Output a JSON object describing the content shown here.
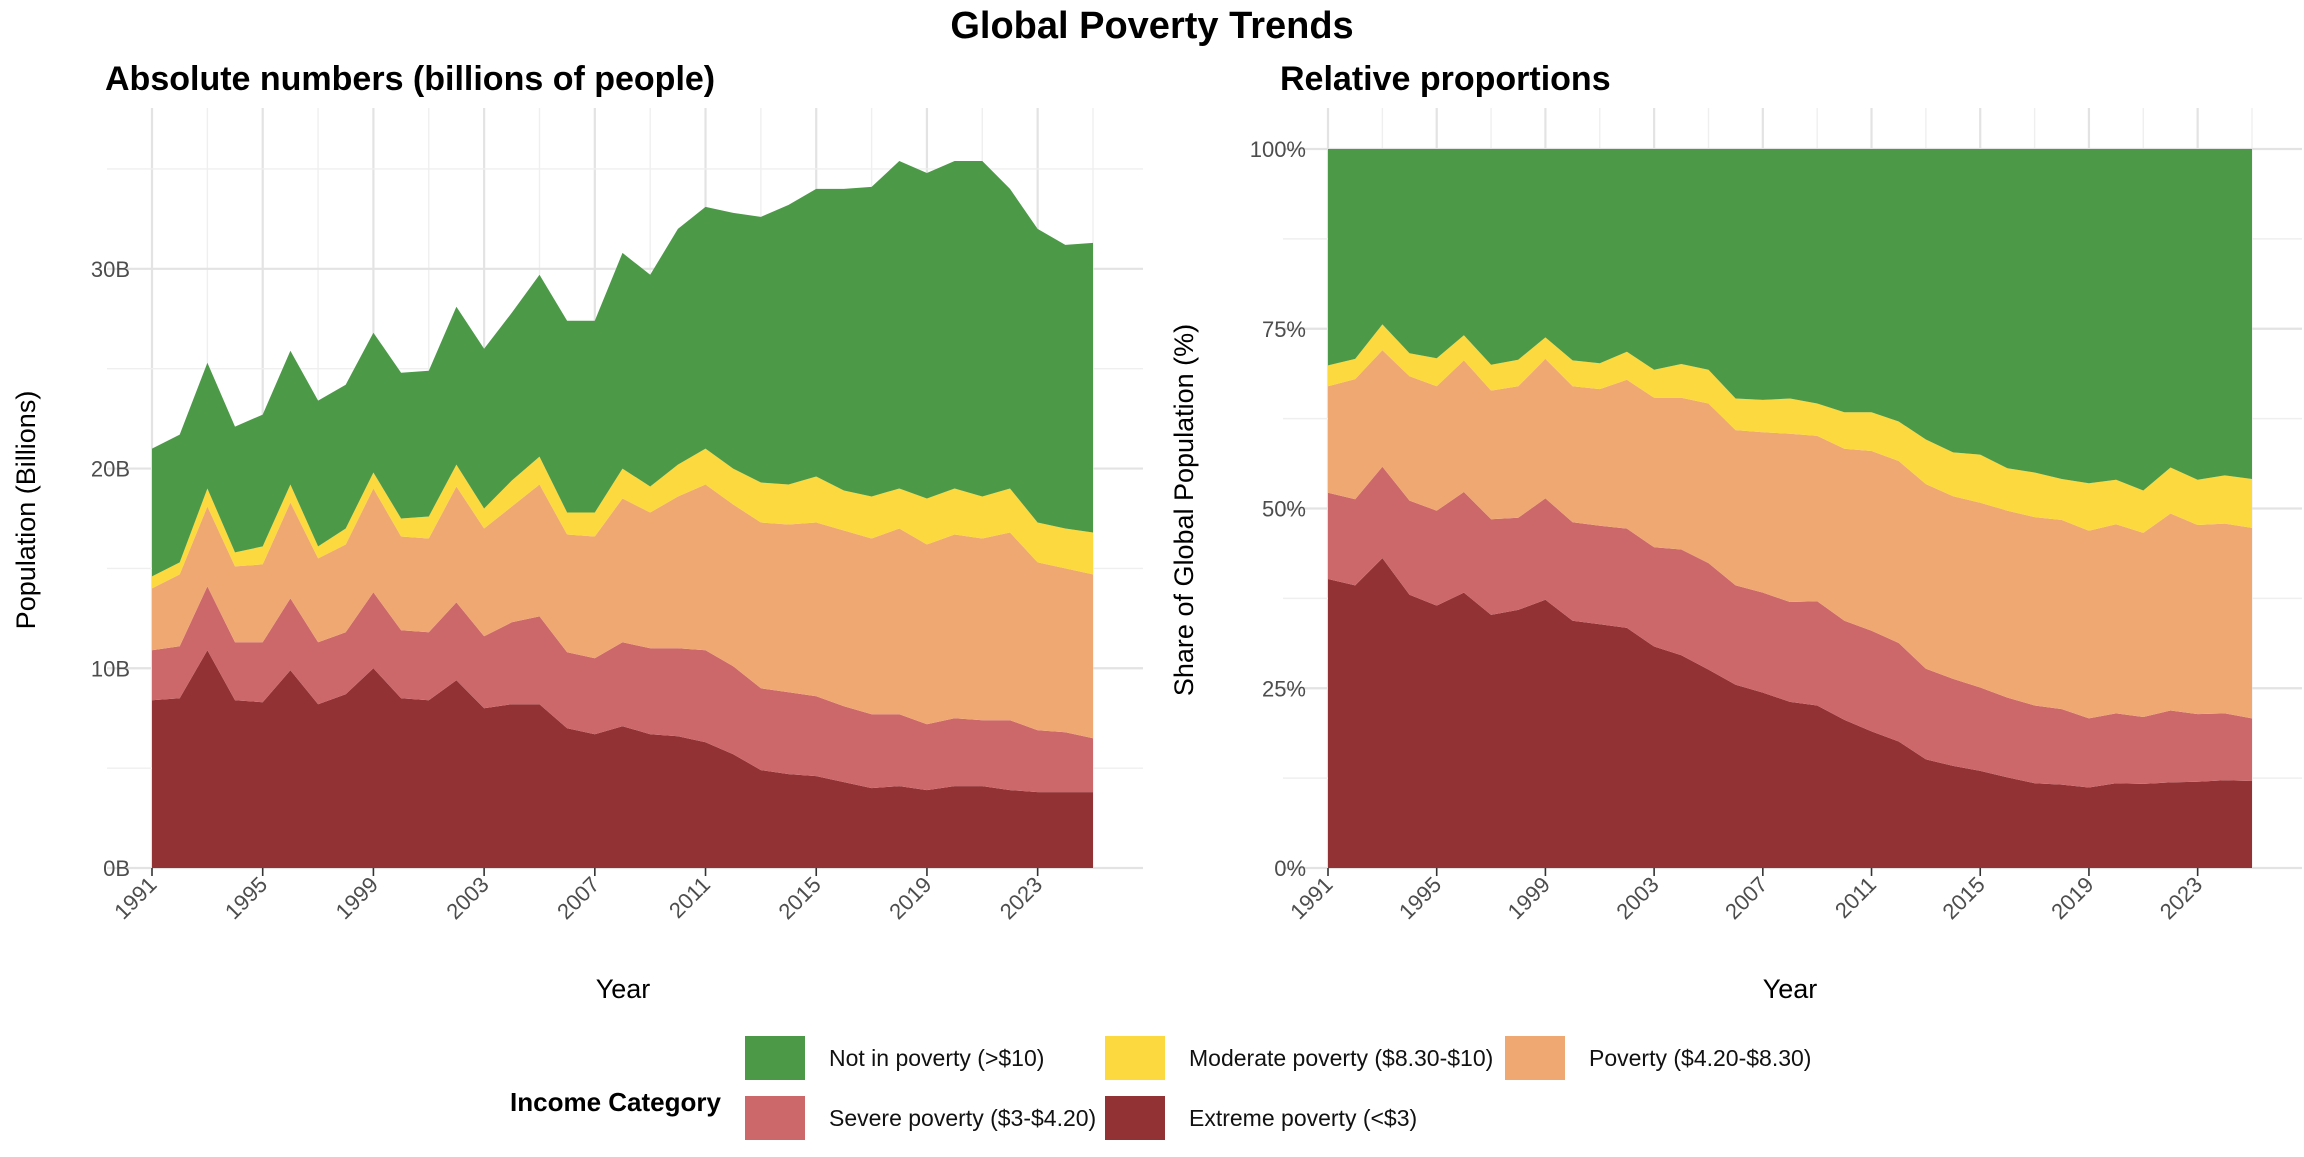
{
  "title": "Global Poverty Trends",
  "colors": {
    "not_in_poverty": "#4C9A48",
    "moderate": "#FCD93F",
    "poverty": "#F0A873",
    "severe": "#CD686A",
    "extreme": "#933234"
  },
  "legend": {
    "title": "Income Category",
    "items": [
      {
        "key": "not_in_poverty",
        "label": "Not in poverty (>$10)"
      },
      {
        "key": "moderate",
        "label": "Moderate poverty ($8.30-$10)"
      },
      {
        "key": "poverty",
        "label": "Poverty ($4.20-$8.30)"
      },
      {
        "key": "severe",
        "label": "Severe poverty ($3-$4.20)"
      },
      {
        "key": "extreme",
        "label": "Extreme poverty (<$3)"
      }
    ]
  },
  "chart_data": [
    {
      "type": "area",
      "title": "Absolute numbers (billions of people)",
      "xlabel": "Year",
      "ylabel": "Population (Billions)",
      "x": [
        1991,
        1992,
        1993,
        1994,
        1995,
        1996,
        1997,
        1998,
        1999,
        2000,
        2001,
        2002,
        2003,
        2004,
        2005,
        2006,
        2007,
        2008,
        2009,
        2010,
        2011,
        2012,
        2013,
        2014,
        2015,
        2016,
        2017,
        2018,
        2019,
        2020,
        2021,
        2022,
        2023,
        2024,
        2025
      ],
      "xlim": [
        1991,
        2025
      ],
      "ylim": [
        0,
        36
      ],
      "x_ticks": [
        "1991",
        "1995",
        "1999",
        "2003",
        "2007",
        "2011",
        "2015",
        "2019",
        "2023"
      ],
      "y_ticks": [
        "0B",
        "10B",
        "20B",
        "30B"
      ],
      "grid": true,
      "stacked": true,
      "series": [
        {
          "key": "extreme",
          "values": [
            8.4,
            8.5,
            10.9,
            8.4,
            8.3,
            9.9,
            8.2,
            8.7,
            10.0,
            8.5,
            8.4,
            9.4,
            8.0,
            8.2,
            8.2,
            7.0,
            6.7,
            7.1,
            6.7,
            6.6,
            6.3,
            5.7,
            4.9,
            4.7,
            4.6,
            4.3,
            4.0,
            4.1,
            3.9,
            4.1,
            4.1,
            3.9,
            3.8,
            3.8,
            3.8
          ]
        },
        {
          "key": "severe",
          "values": [
            2.5,
            2.6,
            3.2,
            2.9,
            3.0,
            3.6,
            3.1,
            3.1,
            3.8,
            3.4,
            3.4,
            3.9,
            3.6,
            4.1,
            4.4,
            3.8,
            3.8,
            4.2,
            4.3,
            4.4,
            4.6,
            4.4,
            4.1,
            4.1,
            4.0,
            3.8,
            3.7,
            3.6,
            3.3,
            3.4,
            3.3,
            3.5,
            3.1,
            3.0,
            2.7
          ]
        },
        {
          "key": "poverty",
          "values": [
            3.1,
            3.6,
            4.0,
            3.8,
            3.9,
            4.8,
            4.2,
            4.4,
            5.2,
            4.7,
            4.7,
            5.8,
            5.4,
            5.8,
            6.6,
            5.9,
            6.1,
            7.2,
            6.8,
            7.6,
            8.3,
            8.1,
            8.3,
            8.4,
            8.7,
            8.8,
            8.8,
            9.3,
            9.0,
            9.2,
            9.1,
            9.4,
            8.4,
            8.2,
            8.2
          ]
        },
        {
          "key": "moderate",
          "values": [
            0.6,
            0.6,
            0.9,
            0.7,
            0.9,
            0.9,
            0.6,
            0.8,
            0.8,
            0.9,
            1.1,
            1.1,
            1.0,
            1.3,
            1.4,
            1.1,
            1.2,
            1.5,
            1.3,
            1.6,
            1.8,
            1.8,
            2.0,
            2.0,
            2.3,
            2.0,
            2.1,
            2.0,
            2.3,
            2.3,
            2.1,
            2.2,
            2.0,
            2.0,
            2.1
          ]
        },
        {
          "key": "not_in_poverty",
          "values": [
            6.4,
            6.4,
            6.3,
            6.3,
            6.6,
            6.7,
            7.3,
            7.2,
            7.0,
            7.3,
            7.3,
            7.9,
            8.0,
            8.4,
            9.1,
            9.6,
            9.6,
            10.8,
            10.6,
            11.8,
            12.1,
            12.8,
            13.3,
            14.0,
            14.4,
            15.1,
            15.5,
            16.4,
            16.3,
            16.4,
            16.8,
            15.0,
            14.7,
            14.2,
            14.5
          ]
        }
      ]
    },
    {
      "type": "area",
      "title": "Relative proportions",
      "xlabel": "Year",
      "ylabel": "Share of Global Population (%)",
      "x": [
        1991,
        1992,
        1993,
        1994,
        1995,
        1996,
        1997,
        1998,
        1999,
        2000,
        2001,
        2002,
        2003,
        2004,
        2005,
        2006,
        2007,
        2008,
        2009,
        2010,
        2011,
        2012,
        2013,
        2014,
        2015,
        2016,
        2017,
        2018,
        2019,
        2020,
        2021,
        2022,
        2023,
        2024,
        2025
      ],
      "xlim": [
        1991,
        2025
      ],
      "ylim": [
        0,
        100
      ],
      "x_ticks": [
        "1991",
        "1995",
        "1999",
        "2003",
        "2007",
        "2011",
        "2015",
        "2019",
        "2023"
      ],
      "y_ticks": [
        "0%",
        "25%",
        "50%",
        "75%",
        "100%"
      ],
      "grid": true,
      "stacked": true,
      "series": [
        {
          "key": "extreme",
          "values": [
            40.2,
            39.3,
            43.1,
            38.0,
            36.5,
            38.3,
            35.2,
            35.9,
            37.3,
            34.4,
            33.9,
            33.4,
            30.8,
            29.6,
            27.6,
            25.5,
            24.4,
            23.1,
            22.6,
            20.6,
            19.0,
            17.6,
            15.1,
            14.2,
            13.5,
            12.6,
            11.8,
            11.6,
            11.2,
            11.8,
            11.7,
            11.9,
            12.0,
            12.2,
            12.1
          ]
        },
        {
          "key": "severe",
          "values": [
            12.0,
            12.0,
            12.7,
            13.1,
            13.2,
            14.0,
            13.3,
            12.8,
            14.1,
            13.7,
            13.7,
            13.8,
            13.8,
            14.7,
            14.8,
            13.8,
            13.9,
            13.9,
            14.5,
            13.8,
            14.0,
            13.7,
            12.6,
            12.1,
            11.6,
            11.1,
            10.8,
            10.5,
            9.6,
            9.7,
            9.3,
            10.0,
            9.4,
            9.3,
            8.7
          ]
        },
        {
          "key": "poverty",
          "values": [
            14.8,
            16.7,
            16.2,
            17.3,
            17.3,
            18.3,
            17.9,
            18.3,
            19.4,
            18.9,
            19.0,
            20.7,
            20.8,
            21.1,
            22.2,
            21.6,
            22.3,
            23.4,
            23.0,
            23.9,
            25.0,
            25.3,
            25.7,
            25.4,
            25.7,
            26.0,
            26.2,
            26.3,
            26.1,
            26.3,
            25.6,
            27.4,
            26.3,
            26.4,
            26.5
          ]
        },
        {
          "key": "moderate",
          "values": [
            2.9,
            2.8,
            3.6,
            3.2,
            3.9,
            3.5,
            3.6,
            3.7,
            3.0,
            3.6,
            3.6,
            3.9,
            3.9,
            4.7,
            4.7,
            4.4,
            4.5,
            4.9,
            4.5,
            5.1,
            5.4,
            5.5,
            6.2,
            6.1,
            6.7,
            5.9,
            6.2,
            5.7,
            6.6,
            6.2,
            5.9,
            6.4,
            6.3,
            6.7,
            6.8
          ]
        },
        {
          "key": "not_in_poverty",
          "values": [
            30.1,
            29.2,
            24.4,
            28.4,
            29.1,
            25.9,
            30.0,
            29.3,
            26.2,
            29.4,
            29.8,
            28.2,
            30.7,
            29.9,
            30.7,
            34.7,
            34.9,
            34.7,
            35.4,
            36.6,
            36.6,
            37.9,
            40.4,
            42.2,
            42.5,
            44.4,
            45.0,
            45.9,
            46.5,
            46.0,
            47.5,
            44.3,
            46.0,
            45.4,
            45.9
          ]
        }
      ]
    }
  ]
}
